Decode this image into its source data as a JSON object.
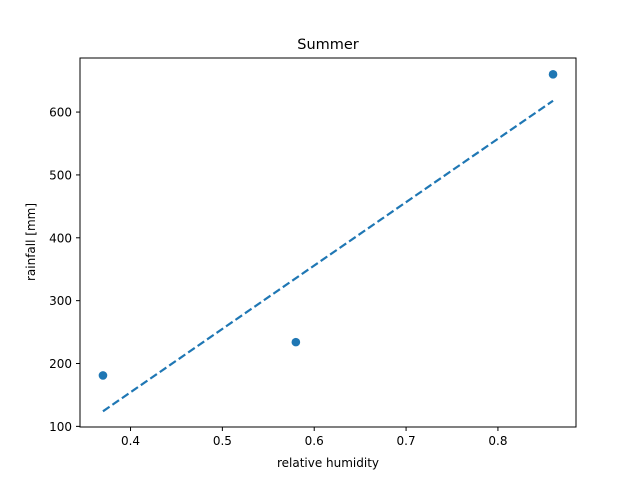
{
  "chart_data": {
    "type": "scatter",
    "title": "Summer",
    "xlabel": "relative humidity",
    "ylabel": "rainfall [mm]",
    "xlim": [
      0.345,
      0.885
    ],
    "ylim": [
      99,
      686
    ],
    "xticks": [
      0.4,
      0.5,
      0.6,
      0.7,
      0.8
    ],
    "xtick_labels": [
      "0.4",
      "0.5",
      "0.6",
      "0.7",
      "0.8"
    ],
    "yticks": [
      100,
      200,
      300,
      400,
      500,
      600
    ],
    "ytick_labels": [
      "100",
      "200",
      "300",
      "400",
      "500",
      "600"
    ],
    "grid": false,
    "series": [
      {
        "kind": "points",
        "x": [
          0.37,
          0.58,
          0.86
        ],
        "y": [
          181,
          234,
          660
        ],
        "color": "#1f77b4"
      },
      {
        "kind": "trend-line",
        "style": "dashed",
        "x": [
          0.37,
          0.86
        ],
        "y": [
          124,
          618
        ],
        "color": "#1f77b4"
      }
    ]
  }
}
